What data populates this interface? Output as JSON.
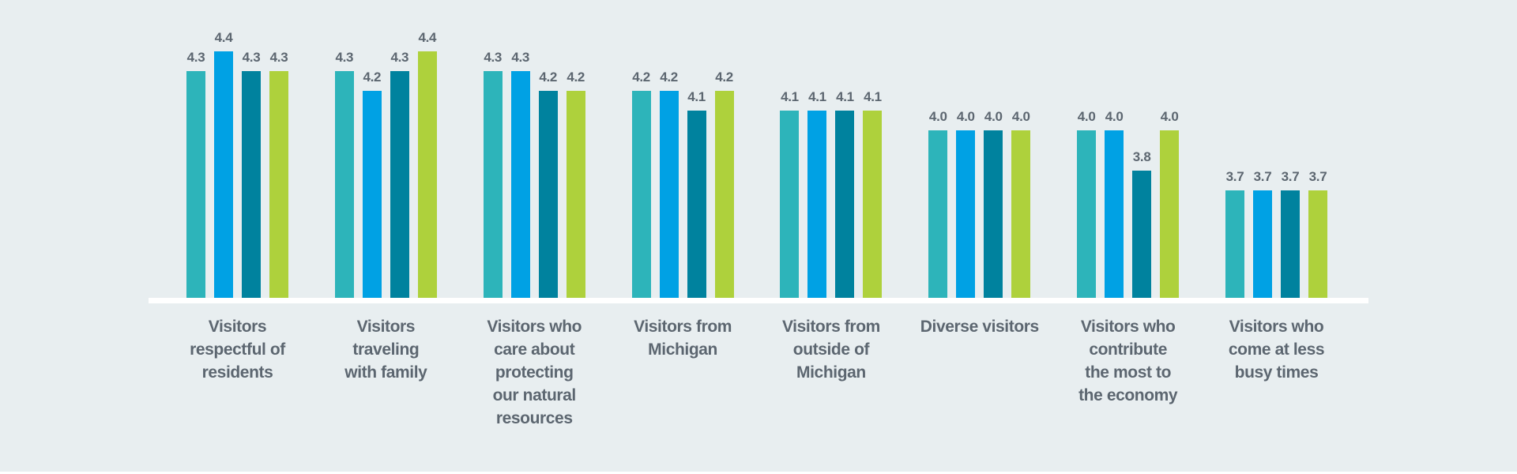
{
  "chart_data": {
    "type": "bar",
    "title": "",
    "categories": [
      "Visitors respectful of residents",
      "Visitors traveling with family",
      "Visitors who care about protecting our natural resources",
      "Visitors from Michigan",
      "Visitors from outside of Michigan",
      "Diverse visitors",
      "Visitors who contribute the most to the economy",
      "Visitors who come at less busy times"
    ],
    "categories_lines": [
      [
        "Visitors",
        "respectful of",
        "residents"
      ],
      [
        "Visitors",
        "traveling",
        "with family"
      ],
      [
        "Visitors who",
        "care about",
        "protecting",
        "our natural",
        "resources"
      ],
      [
        "Visitors from",
        "Michigan"
      ],
      [
        "Visitors from",
        "outside of",
        "Michigan"
      ],
      [
        "Diverse visitors"
      ],
      [
        "Visitors who",
        "contribute",
        "the most to",
        "the economy"
      ],
      [
        "Visitors who",
        "come at less",
        "busy times"
      ]
    ],
    "series": [
      {
        "name": "teal",
        "color": "#2db4ba",
        "values": [
          4.3,
          4.3,
          4.3,
          4.2,
          4.1,
          4.0,
          4.0,
          3.7
        ]
      },
      {
        "name": "blue",
        "color": "#00a1e4",
        "values": [
          4.4,
          4.2,
          4.3,
          4.2,
          4.1,
          4.0,
          4.0,
          3.7
        ]
      },
      {
        "name": "dark-teal",
        "color": "#00829e",
        "values": [
          4.3,
          4.3,
          4.2,
          4.1,
          4.1,
          4.0,
          3.8,
          3.7
        ]
      },
      {
        "name": "green",
        "color": "#aed13c",
        "values": [
          4.3,
          4.4,
          4.2,
          4.2,
          4.1,
          4.0,
          4.0,
          3.7
        ]
      }
    ],
    "bar_value_labels": true,
    "value_label_decimals": 1,
    "ylim": [
      3.16,
      4.45
    ],
    "grid": false,
    "legend": "none"
  },
  "style": {
    "background": "#e8eef0",
    "axis_line_color": "#ffffff",
    "text_color": "#5c6670"
  }
}
